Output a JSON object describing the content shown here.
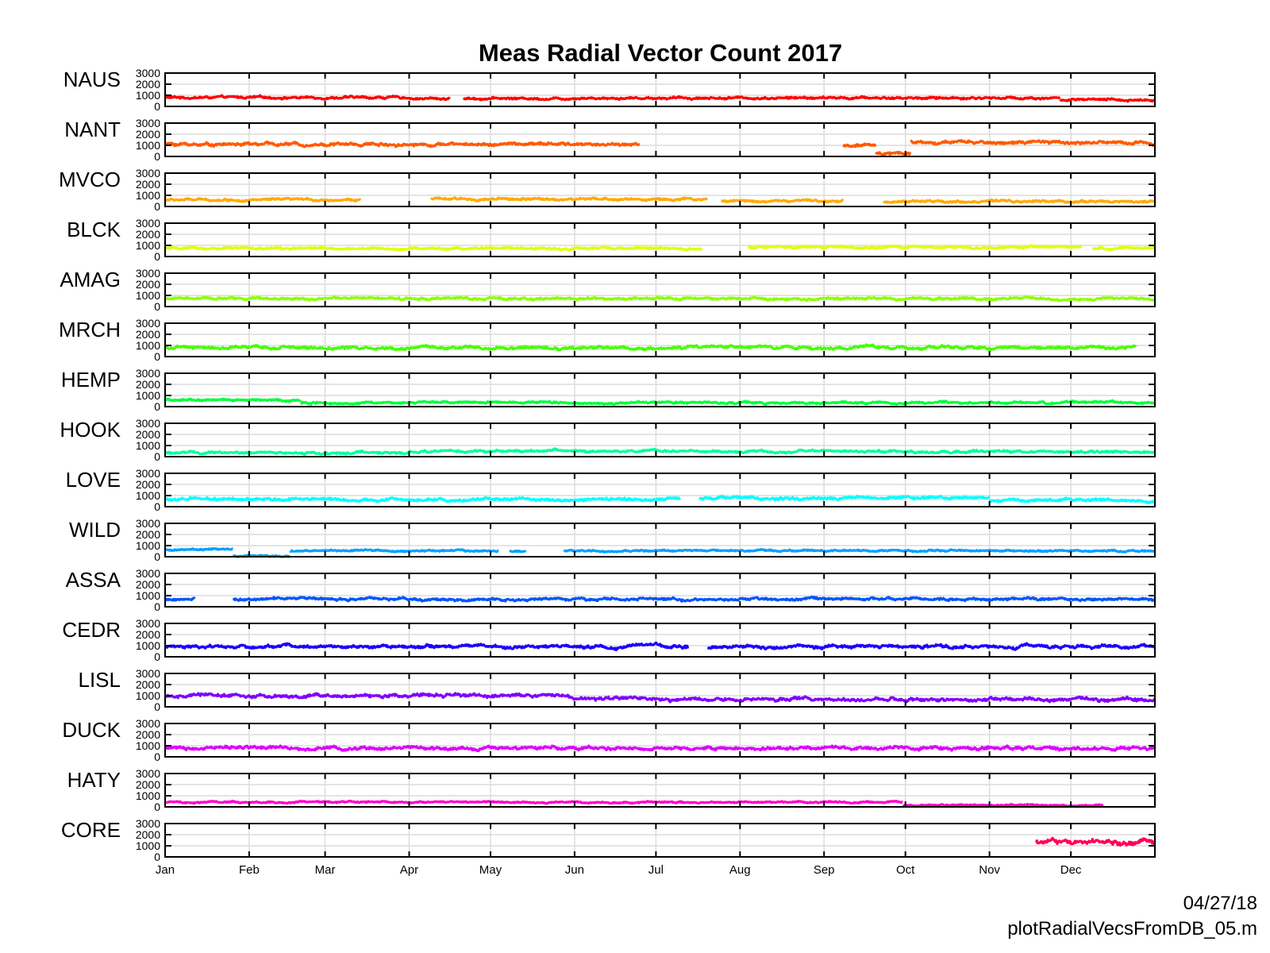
{
  "chart_data": {
    "type": "line",
    "title": "Meas Radial Vector Count 2017",
    "xlabel": "",
    "ylabel": "",
    "x_tick_labels": [
      "Jan",
      "Feb",
      "Mar",
      "Apr",
      "May",
      "Jun",
      "Jul",
      "Aug",
      "Sep",
      "Oct",
      "Nov",
      "Dec"
    ],
    "x_tick_days": [
      0,
      31,
      59,
      90,
      120,
      151,
      181,
      212,
      243,
      273,
      304,
      334
    ],
    "xlim_days": [
      0,
      365
    ],
    "ylim": [
      0,
      3000
    ],
    "y_tick_labels": [
      "3000",
      "2000",
      "1000",
      "0"
    ],
    "y_tick_values": [
      3000,
      2000,
      1000,
      0
    ],
    "grid": true,
    "series": [
      {
        "name": "NAUS",
        "color": "#ff0000",
        "base": 750,
        "noise": 130,
        "segments": [
          [
            0,
            90,
            800
          ],
          [
            90,
            105,
            700
          ],
          [
            110,
            150,
            720
          ],
          [
            150,
            330,
            760
          ],
          [
            330,
            365,
            580
          ]
        ]
      },
      {
        "name": "NANT",
        "color": "#ff5a00",
        "base": 1100,
        "noise": 180,
        "segments": [
          [
            0,
            175,
            1100
          ],
          [
            250,
            262,
            950
          ],
          [
            262,
            275,
            330
          ],
          [
            275,
            365,
            1250
          ]
        ]
      },
      {
        "name": "MVCO",
        "color": "#ffaa00",
        "base": 550,
        "noise": 130,
        "segments": [
          [
            0,
            72,
            600
          ],
          [
            98,
            200,
            650
          ],
          [
            205,
            250,
            500
          ],
          [
            265,
            365,
            450
          ]
        ]
      },
      {
        "name": "BLCK",
        "color": "#dfff00",
        "base": 750,
        "noise": 130,
        "segments": [
          [
            0,
            198,
            720
          ],
          [
            215,
            338,
            830
          ],
          [
            342,
            365,
            740
          ]
        ]
      },
      {
        "name": "AMAG",
        "color": "#8cff00",
        "base": 700,
        "noise": 140,
        "segments": [
          [
            0,
            365,
            720
          ]
        ]
      },
      {
        "name": "MRCH",
        "color": "#45ff00",
        "base": 800,
        "noise": 170,
        "segments": [
          [
            0,
            358,
            800
          ]
        ]
      },
      {
        "name": "HEMP",
        "color": "#00ff3c",
        "base": 380,
        "noise": 120,
        "segments": [
          [
            0,
            50,
            600
          ],
          [
            50,
            365,
            350
          ]
        ]
      },
      {
        "name": "HOOK",
        "color": "#00ff9c",
        "base": 430,
        "noise": 140,
        "segments": [
          [
            0,
            90,
            350
          ],
          [
            90,
            200,
            500
          ],
          [
            200,
            365,
            450
          ]
        ]
      },
      {
        "name": "LOVE",
        "color": "#00ffff",
        "base": 700,
        "noise": 170,
        "segments": [
          [
            0,
            190,
            650
          ],
          [
            197,
            304,
            760
          ],
          [
            304,
            365,
            550
          ]
        ]
      },
      {
        "name": "WILD",
        "color": "#00a0ff",
        "base": 500,
        "noise": 100,
        "segments": [
          [
            0,
            25,
            650
          ],
          [
            25,
            46,
            60
          ],
          [
            46,
            123,
            520
          ],
          [
            127,
            133,
            520
          ],
          [
            147,
            365,
            540
          ]
        ]
      },
      {
        "name": "ASSA",
        "color": "#0055ff",
        "base": 650,
        "noise": 150,
        "segments": [
          [
            0,
            11,
            650
          ],
          [
            25,
            365,
            680
          ]
        ]
      },
      {
        "name": "CEDR",
        "color": "#1a00ff",
        "base": 850,
        "noise": 190,
        "segments": [
          [
            0,
            193,
            900
          ],
          [
            200,
            365,
            900
          ]
        ]
      },
      {
        "name": "LISL",
        "color": "#8000ff",
        "base": 800,
        "noise": 200,
        "segments": [
          [
            0,
            150,
            1000
          ],
          [
            150,
            365,
            680
          ]
        ]
      },
      {
        "name": "DUCK",
        "color": "#dd00ff",
        "base": 750,
        "noise": 190,
        "segments": [
          [
            0,
            365,
            780
          ]
        ]
      },
      {
        "name": "HATY",
        "color": "#ff00c8",
        "base": 350,
        "noise": 90,
        "segments": [
          [
            0,
            272,
            420
          ],
          [
            272,
            346,
            150
          ]
        ]
      },
      {
        "name": "CORE",
        "color": "#ff0055",
        "base": 1350,
        "noise": 300,
        "segments": [
          [
            321,
            365,
            1350
          ]
        ]
      }
    ]
  },
  "footer": {
    "date": "04/27/18",
    "script": "plotRadialVecsFromDB_05.m"
  }
}
